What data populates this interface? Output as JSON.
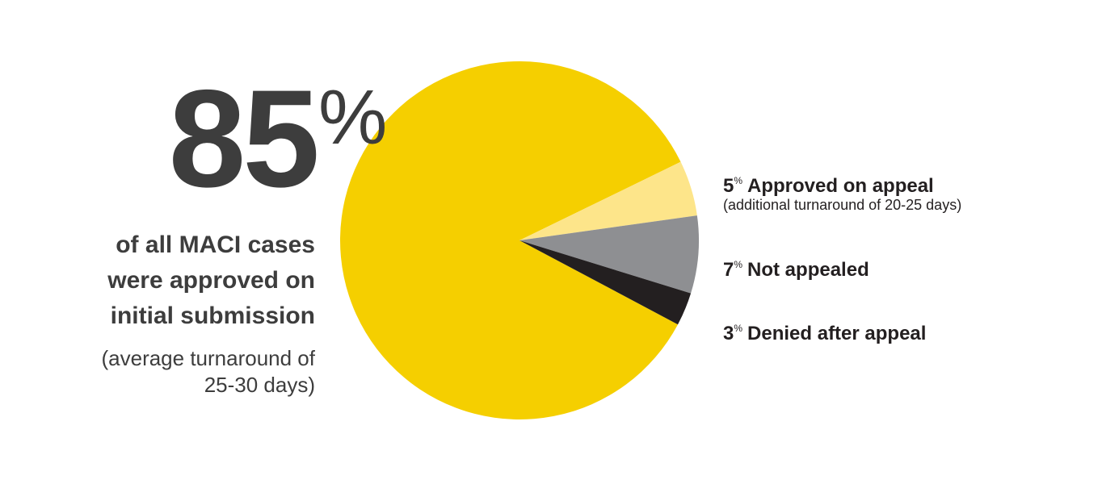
{
  "chart_data": {
    "type": "pie",
    "unit": "%",
    "categories": [
      "of all MACI cases were approved on initial submission",
      "Approved on appeal",
      "Not appealed",
      "Denied after appeal"
    ],
    "notes": [
      "(average turnaround of 25-30 days)",
      "(additional turnaround of 20-25 days)",
      null,
      null
    ],
    "values": [
      85,
      5,
      7,
      3
    ],
    "colors": [
      "#f5cf00",
      "#fde58a",
      "#8e8f92",
      "#231f20"
    ]
  }
}
